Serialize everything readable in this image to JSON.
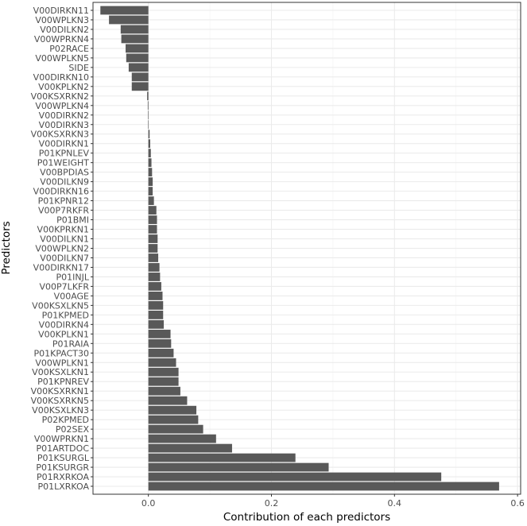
{
  "chart_data": {
    "type": "bar",
    "orientation": "horizontal",
    "xlabel": "Contribution of each predictors",
    "ylabel": "Predictors",
    "xlim": [
      -0.09,
      0.605
    ],
    "xticks": [
      0.0,
      0.2,
      0.4,
      0.6
    ],
    "xtick_labels": [
      "0.0",
      "0.2",
      "0.4",
      "0.6"
    ],
    "grid": true,
    "bar_color": "#595959",
    "panel_background": "#ffffff",
    "grid_color": "#ebebeb",
    "categories": [
      "V00DIRKN11",
      "V00WPLKN3",
      "V00DILKN2",
      "V00WPRKN4",
      "P02RACE",
      "V00WPLKN5",
      "SIDE",
      "V00DIRKN10",
      "V00KPLKN2",
      "V00KSXRKN2",
      "V00WPLKN4",
      "V00DIRKN2",
      "V00DIRKN3",
      "V00KSXRKN3",
      "V00DIRKN1",
      "P01KPNLEV",
      "P01WEIGHT",
      "V00BPDIAS",
      "V00DILKN9",
      "V00DIRKN16",
      "P01KPNR12",
      "V00P7RKFR",
      "P01BMI",
      "V00KPRKN1",
      "V00DILKN1",
      "V00WPLKN2",
      "V00DILKN7",
      "V00DIRKN17",
      "P01INJL",
      "V00P7LKFR",
      "V00AGE",
      "V00KSXLKN5",
      "P01KPMED",
      "V00DIRKN4",
      "V00KPLKN1",
      "P01RAIA",
      "P01KPACT30",
      "V00WPLKN1",
      "V00KSXLKN1",
      "P01KPNREV",
      "V00KSXRKN1",
      "V00KSXRKN5",
      "V00KSXLKN3",
      "P02KPMED",
      "P02SEX",
      "V00WPRKN1",
      "P01ARTDOC",
      "P01KSURGL",
      "P01KSURGR",
      "P01RXRKOA",
      "P01LXRKOA"
    ],
    "values": [
      -0.078,
      -0.064,
      -0.045,
      -0.044,
      -0.037,
      -0.036,
      -0.032,
      -0.027,
      -0.027,
      -0.002,
      -0.001,
      -0.0005,
      -0.0003,
      0.002,
      0.003,
      0.004,
      0.005,
      0.006,
      0.007,
      0.007,
      0.009,
      0.013,
      0.014,
      0.014,
      0.015,
      0.015,
      0.016,
      0.018,
      0.019,
      0.021,
      0.023,
      0.024,
      0.024,
      0.025,
      0.036,
      0.037,
      0.041,
      0.045,
      0.049,
      0.049,
      0.052,
      0.063,
      0.078,
      0.081,
      0.089,
      0.11,
      0.136,
      0.239,
      0.293,
      0.476,
      0.57
    ]
  }
}
